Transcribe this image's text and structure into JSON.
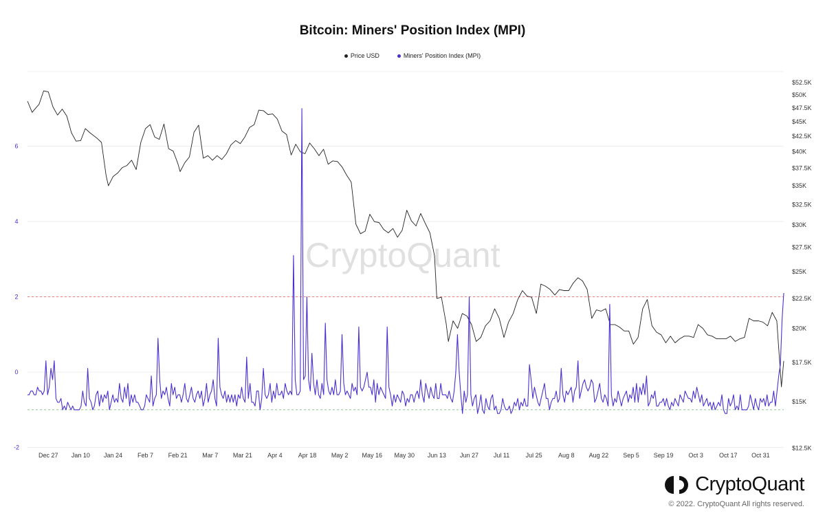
{
  "chart_data": {
    "type": "line",
    "title": "Bitcoin: Miners' Position Index (MPI)",
    "legend": [
      "Price USD",
      "Miners' Position Index (MPI)"
    ],
    "legend_placement": "top-center",
    "colors": {
      "price": "#222222",
      "mpi": "#4a2fd0",
      "upper_ref": "#ef7b7b",
      "lower_ref": "#8fc98f",
      "left_axis": "#4a2fd0"
    },
    "left_axis": {
      "ticks": [
        "6",
        "4",
        "2",
        "0",
        "-2"
      ],
      "ylim": [
        -2,
        7.6
      ]
    },
    "right_axis": {
      "ticks": [
        "$52.5K",
        "$50K",
        "$47.5K",
        "$45K",
        "$42.5K",
        "$40K",
        "$37.5K",
        "$35K",
        "$32.5K",
        "$30K",
        "$27.5K",
        "$25K",
        "$22.5K",
        "$20K",
        "$17.5K",
        "$15K",
        "$12.5K"
      ],
      "scale": "log"
    },
    "x_axis": {
      "ticks": [
        "Dec 27",
        "Jan 10",
        "Jan 24",
        "Feb 7",
        "Feb 21",
        "Mar 7",
        "Mar 21",
        "Apr 4",
        "Apr 18",
        "May 2",
        "May 16",
        "May 30",
        "Jun 13",
        "Jun 27",
        "Jul 11",
        "Jul 25",
        "Aug 8",
        "Aug 22",
        "Sep 5",
        "Sep 19",
        "Oct 3",
        "Oct 17",
        "Oct 31"
      ]
    },
    "reference_lines": [
      2,
      -1
    ],
    "grid": "horizontal",
    "series": [
      {
        "name": "Price USD",
        "axis": "right",
        "points": [
          [
            "Dec 18",
            48800
          ],
          [
            "Dec 20",
            46700
          ],
          [
            "Dec 23",
            48200
          ],
          [
            "Dec 25",
            50800
          ],
          [
            "Dec 27",
            50600
          ],
          [
            "Dec 29",
            47700
          ],
          [
            "Dec 31",
            46200
          ],
          [
            "Jan 2",
            47300
          ],
          [
            "Jan 4",
            46000
          ],
          [
            "Jan 6",
            43100
          ],
          [
            "Jan 8",
            41700
          ],
          [
            "Jan 10",
            41800
          ],
          [
            "Jan 12",
            43800
          ],
          [
            "Jan 14",
            43100
          ],
          [
            "Jan 17",
            42200
          ],
          [
            "Jan 19",
            41500
          ],
          [
            "Jan 21",
            36400
          ],
          [
            "Jan 22",
            35000
          ],
          [
            "Jan 24",
            36300
          ],
          [
            "Jan 26",
            36800
          ],
          [
            "Jan 28",
            37600
          ],
          [
            "Jan 30",
            37900
          ],
          [
            "Feb 1",
            38700
          ],
          [
            "Feb 3",
            37300
          ],
          [
            "Feb 5",
            41500
          ],
          [
            "Feb 7",
            43800
          ],
          [
            "Feb 9",
            44500
          ],
          [
            "Feb 11",
            42400
          ],
          [
            "Feb 13",
            42000
          ],
          [
            "Feb 15",
            44600
          ],
          [
            "Feb 17",
            40500
          ],
          [
            "Feb 19",
            40100
          ],
          [
            "Feb 21",
            38200
          ],
          [
            "Feb 22",
            37000
          ],
          [
            "Feb 24",
            38300
          ],
          [
            "Feb 26",
            39200
          ],
          [
            "Feb 28",
            43200
          ],
          [
            "Mar 2",
            44400
          ],
          [
            "Mar 4",
            39000
          ],
          [
            "Mar 6",
            39400
          ],
          [
            "Mar 8",
            38700
          ],
          [
            "Mar 10",
            39400
          ],
          [
            "Mar 12",
            38800
          ],
          [
            "Mar 14",
            39700
          ],
          [
            "Mar 16",
            41100
          ],
          [
            "Mar 18",
            41800
          ],
          [
            "Mar 20",
            41300
          ],
          [
            "Mar 22",
            42400
          ],
          [
            "Mar 24",
            44000
          ],
          [
            "Mar 26",
            44500
          ],
          [
            "Mar 28",
            47100
          ],
          [
            "Mar 30",
            47000
          ],
          [
            "Apr 1",
            46300
          ],
          [
            "Apr 3",
            46400
          ],
          [
            "Apr 5",
            45500
          ],
          [
            "Apr 7",
            43400
          ],
          [
            "Apr 9",
            42800
          ],
          [
            "Apr 11",
            39500
          ],
          [
            "Apr 13",
            41200
          ],
          [
            "Apr 15",
            40000
          ],
          [
            "Apr 17",
            39700
          ],
          [
            "Apr 19",
            41400
          ],
          [
            "Apr 21",
            40500
          ],
          [
            "Apr 23",
            39400
          ],
          [
            "Apr 25",
            40400
          ],
          [
            "Apr 27",
            38100
          ],
          [
            "Apr 29",
            38600
          ],
          [
            "May 1",
            38500
          ],
          [
            "May 3",
            37700
          ],
          [
            "May 5",
            36500
          ],
          [
            "May 7",
            35500
          ],
          [
            "May 9",
            30100
          ],
          [
            "May 11",
            29000
          ],
          [
            "May 13",
            29300
          ],
          [
            "May 15",
            31300
          ],
          [
            "May 17",
            30400
          ],
          [
            "May 19",
            30300
          ],
          [
            "May 21",
            29500
          ],
          [
            "May 23",
            29100
          ],
          [
            "May 25",
            29600
          ],
          [
            "May 27",
            28600
          ],
          [
            "May 29",
            29400
          ],
          [
            "May 31",
            31800
          ],
          [
            "Jun 2",
            30500
          ],
          [
            "Jun 4",
            29900
          ],
          [
            "Jun 6",
            31400
          ],
          [
            "Jun 8",
            30200
          ],
          [
            "Jun 10",
            29100
          ],
          [
            "Jun 12",
            26600
          ],
          [
            "Jun 13",
            22500
          ],
          [
            "Jun 15",
            22600
          ],
          [
            "Jun 17",
            20400
          ],
          [
            "Jun 18",
            19000
          ],
          [
            "Jun 20",
            20600
          ],
          [
            "Jun 22",
            20000
          ],
          [
            "Jun 24",
            21200
          ],
          [
            "Jun 26",
            21000
          ],
          [
            "Jun 28",
            20300
          ],
          [
            "Jun 30",
            19000
          ],
          [
            "Jul 2",
            19300
          ],
          [
            "Jul 4",
            20200
          ],
          [
            "Jul 6",
            20600
          ],
          [
            "Jul 8",
            21600
          ],
          [
            "Jul 10",
            20800
          ],
          [
            "Jul 12",
            19300
          ],
          [
            "Jul 14",
            20500
          ],
          [
            "Jul 16",
            21200
          ],
          [
            "Jul 18",
            22400
          ],
          [
            "Jul 20",
            23200
          ],
          [
            "Jul 22",
            22700
          ],
          [
            "Jul 24",
            22600
          ],
          [
            "Jul 26",
            21200
          ],
          [
            "Jul 28",
            23800
          ],
          [
            "Jul 30",
            23600
          ],
          [
            "Aug 1",
            23300
          ],
          [
            "Aug 3",
            22800
          ],
          [
            "Aug 5",
            23300
          ],
          [
            "Aug 7",
            23200
          ],
          [
            "Aug 9",
            23200
          ],
          [
            "Aug 11",
            23900
          ],
          [
            "Aug 13",
            24400
          ],
          [
            "Aug 15",
            24100
          ],
          [
            "Aug 17",
            23300
          ],
          [
            "Aug 19",
            20800
          ],
          [
            "Aug 21",
            21500
          ],
          [
            "Aug 23",
            21400
          ],
          [
            "Aug 25",
            21600
          ],
          [
            "Aug 27",
            20300
          ],
          [
            "Aug 29",
            20300
          ],
          [
            "Aug 31",
            20100
          ],
          [
            "Sep 2",
            19800
          ],
          [
            "Sep 4",
            19800
          ],
          [
            "Sep 6",
            18800
          ],
          [
            "Sep 8",
            19300
          ],
          [
            "Sep 10",
            21600
          ],
          [
            "Sep 12",
            22400
          ],
          [
            "Sep 14",
            20200
          ],
          [
            "Sep 16",
            19700
          ],
          [
            "Sep 18",
            19500
          ],
          [
            "Sep 20",
            18900
          ],
          [
            "Sep 22",
            19400
          ],
          [
            "Sep 24",
            18900
          ],
          [
            "Sep 26",
            19200
          ],
          [
            "Sep 28",
            19400
          ],
          [
            "Sep 30",
            19400
          ],
          [
            "Oct 2",
            19300
          ],
          [
            "Oct 4",
            20300
          ],
          [
            "Oct 6",
            20000
          ],
          [
            "Oct 8",
            19500
          ],
          [
            "Oct 10",
            19400
          ],
          [
            "Oct 12",
            19200
          ],
          [
            "Oct 14",
            19200
          ],
          [
            "Oct 16",
            19200
          ],
          [
            "Oct 18",
            19400
          ],
          [
            "Oct 20",
            19000
          ],
          [
            "Oct 22",
            19200
          ],
          [
            "Oct 24",
            19300
          ],
          [
            "Oct 26",
            20800
          ],
          [
            "Oct 28",
            20600
          ],
          [
            "Oct 30",
            20600
          ],
          [
            "Nov 1",
            20500
          ],
          [
            "Nov 3",
            20200
          ],
          [
            "Nov 5",
            21300
          ],
          [
            "Nov 7",
            20600
          ],
          [
            "Nov 9",
            15900
          ],
          [
            "Nov 10",
            17600
          ]
        ]
      },
      {
        "name": "Miners' Position Index (MPI)",
        "axis": "left",
        "values": [
          -0.6,
          -0.6,
          -0.5,
          -0.5,
          -0.6,
          -0.6,
          -0.4,
          -0.5,
          -0.5,
          -0.6,
          -0.5,
          0.3,
          -0.6,
          -0.4,
          0.1,
          -0.2,
          0.3,
          -0.7,
          -0.8,
          -0.8,
          -0.7,
          -1.0,
          -0.9,
          -1.0,
          -0.8,
          -0.9,
          -1.0,
          -0.9,
          -1.0,
          -1.0,
          -1.0,
          -1.0,
          -0.9,
          -0.5,
          -0.8,
          -0.9,
          0.1,
          -0.7,
          -0.8,
          -1.0,
          -0.9,
          -0.6,
          -0.5,
          -0.9,
          -0.6,
          -0.8,
          -0.6,
          -0.7,
          -0.5,
          -1.0,
          -0.8,
          -0.6,
          -0.8,
          -0.7,
          -0.8,
          -0.3,
          -0.7,
          -0.8,
          -0.4,
          -0.7,
          -0.3,
          -0.9,
          -0.6,
          -0.8,
          -0.6,
          -0.8,
          -0.8,
          -0.9,
          -1.0,
          -1.0,
          -0.9,
          -0.6,
          -0.7,
          -0.8,
          -0.1,
          -0.9,
          -0.7,
          -0.6,
          0.9,
          -0.2,
          -0.7,
          -0.5,
          -0.6,
          -0.4,
          -0.7,
          -0.9,
          -0.3,
          -0.6,
          -0.4,
          -0.7,
          -0.6,
          -0.6,
          -0.8,
          -0.6,
          -0.3,
          -0.7,
          -0.8,
          -0.6,
          -0.4,
          -0.7,
          -0.8,
          -0.6,
          -0.5,
          -0.7,
          -0.5,
          -0.9,
          -0.7,
          -0.3,
          -0.8,
          -0.6,
          -0.5,
          -0.2,
          -0.7,
          -0.9,
          0.9,
          -0.4,
          -0.6,
          -0.7,
          -0.5,
          -0.8,
          -0.6,
          -0.8,
          -0.6,
          -0.8,
          -0.6,
          -0.9,
          -0.6,
          -0.7,
          -0.4,
          -0.7,
          -0.8,
          0.4,
          -0.7,
          -0.3,
          -0.8,
          -0.8,
          -0.9,
          -0.5,
          -0.5,
          -1.0,
          -0.7,
          0.1,
          -0.6,
          -0.7,
          -0.6,
          -0.3,
          -0.8,
          -0.5,
          -0.7,
          -0.3,
          -0.6,
          -0.6,
          -0.5,
          -0.7,
          -0.3,
          -0.5,
          -0.6,
          -0.5,
          -0.6,
          3.1,
          -0.2,
          -0.6,
          -0.6,
          -0.5,
          7.0,
          -0.2,
          -0.1,
          2.0,
          -0.2,
          -0.5,
          0.5,
          -0.3,
          -0.6,
          -0.2,
          -0.6,
          -0.7,
          -0.3,
          -0.6,
          1.3,
          -0.2,
          -0.5,
          -0.6,
          -0.4,
          -0.6,
          -0.2,
          -0.6,
          -0.6,
          -0.5,
          1.0,
          -0.3,
          -0.6,
          -0.5,
          -0.6,
          -0.7,
          -0.3,
          -0.5,
          -0.4,
          -0.6,
          1.2,
          -0.4,
          -0.5,
          -0.4,
          -0.2,
          0.0,
          -0.4,
          -0.4,
          -0.6,
          -0.2,
          -0.8,
          -0.3,
          -0.6,
          -0.4,
          -0.5,
          -0.6,
          -0.7,
          1.2,
          -0.4,
          -0.6,
          -0.9,
          -0.6,
          -0.8,
          -0.6,
          -0.7,
          -0.8,
          -0.5,
          -0.6,
          -0.9,
          -0.7,
          -0.8,
          -0.6,
          -0.6,
          -0.8,
          -0.6,
          -0.5,
          -0.7,
          -0.2,
          -0.6,
          -0.8,
          -0.3,
          -0.5,
          -0.7,
          -0.4,
          -0.6,
          -0.7,
          -0.3,
          -0.7,
          -0.7,
          -0.3,
          -0.6,
          -0.6,
          -0.6,
          -0.7,
          -0.5,
          -0.7,
          -0.8,
          -0.5,
          0.0,
          1.0,
          0.0,
          -0.6,
          -1.1,
          -0.5,
          -0.8,
          -0.6,
          2.0,
          -0.6,
          -0.9,
          -0.7,
          -0.6,
          -1.1,
          -0.9,
          -0.6,
          -1.0,
          -1.1,
          -0.7,
          -0.9,
          -1.0,
          -0.7,
          -0.6,
          -1.0,
          -0.9,
          -1.1,
          -1.1,
          -1.0,
          -0.7,
          -0.9,
          -1.0,
          -1.0,
          -0.9,
          -1.1,
          -1.0,
          -0.8,
          -0.9,
          -0.7,
          -1.0,
          -0.8,
          -0.9,
          -0.7,
          -0.9,
          -0.9,
          0.2,
          -0.2,
          -0.7,
          -0.4,
          -0.6,
          -0.8,
          -0.9,
          -0.7,
          -0.5,
          -0.3,
          -0.7,
          -0.7,
          -1.0,
          -0.8,
          -0.7,
          -0.7,
          -0.5,
          -0.8,
          -0.7,
          0.1,
          -0.6,
          -0.8,
          -0.5,
          -0.6,
          -0.5,
          -0.4,
          -0.8,
          -0.5,
          -0.4,
          0.3,
          -0.7,
          -0.5,
          -0.3,
          -0.2,
          -0.4,
          -0.5,
          -0.4,
          -0.2,
          -0.3,
          -0.8,
          -0.7,
          -0.5,
          -0.3,
          -0.7,
          -0.8,
          -0.6,
          -0.7,
          -0.9,
          1.8,
          -0.6,
          -0.9,
          -0.7,
          -0.8,
          -0.5,
          -0.7,
          -0.9,
          -0.7,
          -0.6,
          -0.5,
          -0.8,
          -0.6,
          -0.7,
          -0.4,
          -0.8,
          -0.3,
          -0.8,
          -0.4,
          -0.6,
          -0.3,
          -0.6,
          -0.1,
          -0.9,
          -0.8,
          -0.6,
          -0.7,
          -0.5,
          -0.9,
          -0.9,
          -0.8,
          -0.8,
          -0.7,
          -0.9,
          -0.7,
          -0.9,
          -1.0,
          -0.8,
          -0.9,
          -0.7,
          -0.8,
          -0.9,
          -0.6,
          -0.7,
          -0.8,
          -0.5,
          -0.6,
          -0.7,
          -0.7,
          -0.8,
          -0.5,
          -0.7,
          -0.4,
          -0.6,
          -0.8,
          -0.6,
          -0.9,
          -0.8,
          -0.7,
          -0.9,
          -0.8,
          -1.0,
          -0.8,
          -1.0,
          -0.9,
          -0.8,
          -0.9,
          -0.6,
          -1.0,
          -1.1,
          -1.1,
          -0.7,
          -0.9,
          -0.8,
          -0.6,
          -1.0,
          -0.9,
          -1.0,
          -0.6,
          -1.0,
          -1.0,
          -1.0,
          -1.0,
          -0.9,
          -0.6,
          -0.8,
          -1.0,
          -0.7,
          -0.9,
          -1.0,
          -0.7,
          -0.8,
          -0.7,
          -0.9,
          -0.6,
          -0.9,
          -0.8,
          -0.8,
          -0.5,
          -0.9,
          -0.5,
          -0.1,
          0.2,
          1.4,
          2.1
        ]
      }
    ]
  },
  "watermark": "CryptoQuant",
  "brand": {
    "name": "CryptoQuant",
    "copyright": "© 2022. CryptoQuant All rights reserved."
  }
}
